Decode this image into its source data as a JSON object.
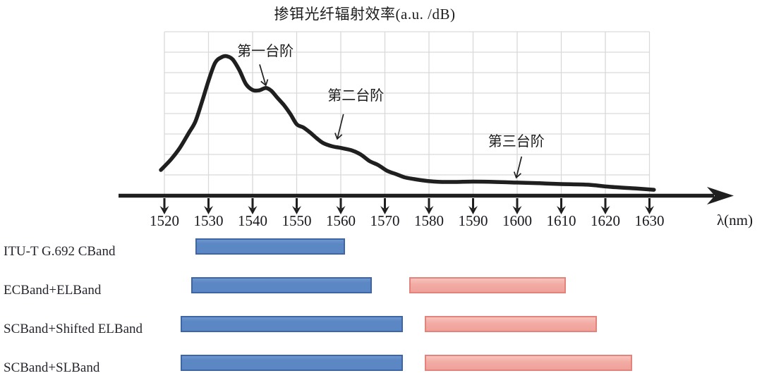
{
  "title": "掺铒光纤辐射效率(a.u. /dB)",
  "axis": {
    "unit_label": "λ(nm)",
    "ticks": [
      1520,
      1530,
      1540,
      1550,
      1560,
      1570,
      1580,
      1590,
      1600,
      1610,
      1620,
      1630
    ]
  },
  "chart_data": {
    "type": "line",
    "title": "掺铒光纤辐射效率(a.u. /dB)",
    "xlabel": "λ(nm)",
    "ylabel": "",
    "xlim": [
      1520,
      1630
    ],
    "x_ticks": [
      1520,
      1530,
      1540,
      1550,
      1560,
      1570,
      1580,
      1590,
      1600,
      1610,
      1620,
      1630
    ],
    "grid": true,
    "grid_rows": 8,
    "series": [
      {
        "name": "掺铒光纤辐射效率",
        "points": [
          [
            1519.2,
            0.155
          ],
          [
            1521.5,
            0.22
          ],
          [
            1523.5,
            0.29
          ],
          [
            1525.5,
            0.38
          ],
          [
            1527.0,
            0.45
          ],
          [
            1528.5,
            0.57
          ],
          [
            1530.0,
            0.7
          ],
          [
            1531.5,
            0.81
          ],
          [
            1533.0,
            0.845
          ],
          [
            1534.2,
            0.85
          ],
          [
            1535.5,
            0.83
          ],
          [
            1537.0,
            0.765
          ],
          [
            1538.5,
            0.68
          ],
          [
            1540.0,
            0.644
          ],
          [
            1541.5,
            0.642
          ],
          [
            1543.0,
            0.656
          ],
          [
            1544.2,
            0.64
          ],
          [
            1545.5,
            0.6
          ],
          [
            1547.0,
            0.555
          ],
          [
            1548.5,
            0.5
          ],
          [
            1550.0,
            0.435
          ],
          [
            1551.5,
            0.415
          ],
          [
            1553.0,
            0.385
          ],
          [
            1554.5,
            0.35
          ],
          [
            1556.0,
            0.32
          ],
          [
            1558.0,
            0.3
          ],
          [
            1560.0,
            0.29
          ],
          [
            1562.5,
            0.275
          ],
          [
            1564.5,
            0.25
          ],
          [
            1566.5,
            0.21
          ],
          [
            1568.5,
            0.185
          ],
          [
            1570.5,
            0.15
          ],
          [
            1572.5,
            0.13
          ],
          [
            1574.5,
            0.11
          ],
          [
            1576.5,
            0.1
          ],
          [
            1579.0,
            0.09
          ],
          [
            1582.0,
            0.083
          ],
          [
            1586.0,
            0.082
          ],
          [
            1590.0,
            0.084
          ],
          [
            1595.0,
            0.082
          ],
          [
            1600.0,
            0.078
          ],
          [
            1605.0,
            0.074
          ],
          [
            1610.0,
            0.069
          ],
          [
            1616.0,
            0.065
          ],
          [
            1621.0,
            0.052
          ],
          [
            1627.0,
            0.042
          ],
          [
            1631.0,
            0.034
          ]
        ]
      }
    ],
    "annotations": [
      {
        "label": "第一台阶",
        "text_at": [
          1536.5,
          0.953
        ],
        "arrow_from": [
          1541.6,
          0.8
        ],
        "arrow_to": [
          1543.0,
          0.672
        ]
      },
      {
        "label": "第二台阶",
        "text_at": [
          1557.0,
          0.681
        ],
        "arrow_from": [
          1560.6,
          0.496
        ],
        "arrow_to": [
          1559.2,
          0.345
        ]
      },
      {
        "label": "第三台阶",
        "text_at": [
          1593.4,
          0.401
        ],
        "arrow_from": [
          1601.0,
          0.237
        ],
        "arrow_to": [
          1599.8,
          0.108
        ]
      }
    ]
  },
  "bands": {
    "rows": [
      {
        "label": "ITU-T G.692 CBand",
        "segments": [
          {
            "kind": "blue",
            "from_nm": 1527,
            "to_nm": 1561
          }
        ]
      },
      {
        "label": "ECBand+ELBand",
        "segments": [
          {
            "kind": "blue",
            "from_nm": 1526,
            "to_nm": 1567
          },
          {
            "kind": "red",
            "from_nm": 1575.5,
            "to_nm": 1611
          }
        ]
      },
      {
        "label": "SCBand+Shifted ELBand",
        "segments": [
          {
            "kind": "blue",
            "from_nm": 1523.7,
            "to_nm": 1574
          },
          {
            "kind": "red",
            "from_nm": 1579,
            "to_nm": 1618
          }
        ]
      },
      {
        "label": "SCBand+SLBand",
        "segments": [
          {
            "kind": "blue",
            "from_nm": 1523.7,
            "to_nm": 1574
          },
          {
            "kind": "red",
            "from_nm": 1579,
            "to_nm": 1626
          }
        ]
      }
    ]
  },
  "colors": {
    "ink": "#1f1f1f",
    "grid": "#d9d9d9",
    "blue_fill": "#5b87c4",
    "blue_border": "#3e66a6",
    "red_fill": "#f2aba3",
    "red_border": "#e4837c"
  }
}
